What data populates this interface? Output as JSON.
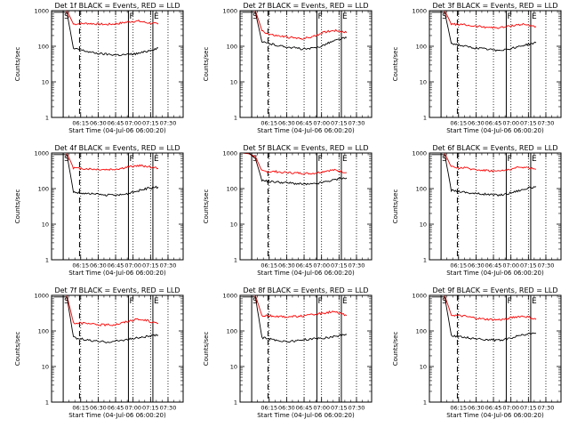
{
  "figure_colors": {
    "events": "#000000",
    "lld": "#ff0000",
    "background": "#ffffff"
  },
  "chart_data": [
    {
      "type": "line",
      "title": "Det 1f BLACK = Events, RED = LLD",
      "xlabel": "Start Time (04-Jul-06 06:00:20)",
      "ylabel": "Counts/sec",
      "y_scale": "log",
      "ylim": [
        1,
        1000
      ],
      "x_tick_labels": [
        "06:15",
        "06:30",
        "06:45",
        "07:00",
        "07:15",
        "07:30"
      ],
      "y_tick_labels": [
        "1",
        "10",
        "100",
        "1000"
      ],
      "markers": [
        {
          "label": "S",
          "x": "06:00"
        },
        {
          "label": "F",
          "x": "06:56"
        },
        {
          "label": "E",
          "x": "07:17"
        }
      ],
      "series": [
        {
          "values": [
            1000,
            1000,
            1000,
            420,
            430,
            440,
            430,
            420,
            410,
            420,
            440,
            470,
            500,
            510,
            470,
            440,
            420
          ]
        },
        {
          "values": [
            900,
            900,
            900,
            85,
            80,
            72,
            66,
            62,
            60,
            58,
            57,
            58,
            60,
            63,
            70,
            80,
            90
          ]
        }
      ]
    },
    {
      "type": "line",
      "title": "Det 2f BLACK = Events, RED = LLD",
      "xlabel": "Start Time (04-Jul-06 06:00:20)",
      "ylabel": "Counts/sec",
      "y_scale": "log",
      "ylim": [
        1,
        1000
      ],
      "x_tick_labels": [
        "06:15",
        "06:30",
        "06:45",
        "07:00",
        "07:15",
        "07:30"
      ],
      "y_tick_labels": [
        "1",
        "10",
        "100",
        "1000"
      ],
      "markers": [
        {
          "label": "S",
          "x": "06:00"
        },
        {
          "label": "F",
          "x": "06:56"
        },
        {
          "label": "E",
          "x": "07:17"
        }
      ],
      "series": [
        {
          "values": [
            1000,
            1000,
            1000,
            280,
            220,
            200,
            190,
            180,
            170,
            165,
            170,
            190,
            230,
            260,
            280,
            270,
            240
          ]
        },
        {
          "values": [
            900,
            900,
            900,
            130,
            120,
            110,
            100,
            95,
            90,
            85,
            83,
            88,
            100,
            120,
            140,
            160,
            175
          ]
        }
      ]
    },
    {
      "type": "line",
      "title": "Det 3f BLACK = Events, RED = LLD",
      "xlabel": "Start Time (04-Jul-06 06:00:20)",
      "ylabel": "Counts/sec",
      "y_scale": "log",
      "ylim": [
        1,
        1000
      ],
      "x_tick_labels": [
        "06:15",
        "06:30",
        "06:45",
        "07:00",
        "07:15",
        "07:30"
      ],
      "y_tick_labels": [
        "1",
        "10",
        "100",
        "1000"
      ],
      "markers": [
        {
          "label": "S",
          "x": "06:00"
        },
        {
          "label": "F",
          "x": "06:56"
        },
        {
          "label": "E",
          "x": "07:17"
        }
      ],
      "series": [
        {
          "values": [
            1000,
            1000,
            1000,
            420,
            410,
            400,
            380,
            360,
            350,
            340,
            330,
            340,
            370,
            400,
            410,
            390,
            360
          ]
        },
        {
          "values": [
            900,
            900,
            900,
            120,
            110,
            100,
            92,
            88,
            84,
            80,
            78,
            80,
            85,
            95,
            105,
            115,
            125
          ]
        }
      ]
    },
    {
      "type": "line",
      "title": "Det 4f BLACK = Events, RED = LLD",
      "xlabel": "Start Time (04-Jul-06 06:00:20)",
      "ylabel": "Counts/sec",
      "y_scale": "log",
      "ylim": [
        1,
        1000
      ],
      "x_tick_labels": [
        "06:15",
        "06:30",
        "06:45",
        "07:00",
        "07:15",
        "07:30"
      ],
      "y_tick_labels": [
        "1",
        "10",
        "100",
        "1000"
      ],
      "markers": [
        {
          "label": "S",
          "x": "06:00"
        },
        {
          "label": "F",
          "x": "06:56"
        },
        {
          "label": "E",
          "x": "07:17"
        }
      ],
      "series": [
        {
          "values": [
            1000,
            1000,
            1000,
            380,
            370,
            360,
            350,
            345,
            340,
            345,
            360,
            390,
            420,
            440,
            430,
            400,
            370
          ]
        },
        {
          "values": [
            900,
            900,
            900,
            80,
            75,
            72,
            70,
            68,
            66,
            65,
            66,
            70,
            78,
            88,
            98,
            105,
            110
          ]
        }
      ]
    },
    {
      "type": "line",
      "title": "Det 5f BLACK = Events, RED = LLD",
      "xlabel": "Start Time (04-Jul-06 06:00:20)",
      "ylabel": "Counts/sec",
      "y_scale": "log",
      "ylim": [
        1,
        1000
      ],
      "x_tick_labels": [
        "06:15",
        "06:30",
        "06:45",
        "07:00",
        "07:15",
        "07:30"
      ],
      "y_tick_labels": [
        "1",
        "10",
        "100",
        "1000"
      ],
      "markers": [
        {
          "label": "S",
          "x": "06:00"
        },
        {
          "label": "F",
          "x": "06:56"
        },
        {
          "label": "E",
          "x": "07:17"
        }
      ],
      "series": [
        {
          "values": [
            1000,
            950,
            800,
            310,
            300,
            300,
            290,
            280,
            275,
            270,
            265,
            270,
            290,
            320,
            330,
            310,
            280
          ]
        },
        {
          "values": [
            1000,
            1000,
            700,
            170,
            160,
            155,
            150,
            145,
            140,
            135,
            132,
            135,
            145,
            160,
            175,
            190,
            200
          ]
        }
      ]
    },
    {
      "type": "line",
      "title": "Det 6f BLACK = Events, RED = LLD",
      "xlabel": "Start Time (04-Jul-06 06:00:20)",
      "ylabel": "Counts/sec",
      "y_scale": "log",
      "ylim": [
        1,
        1000
      ],
      "x_tick_labels": [
        "06:15",
        "06:30",
        "06:45",
        "07:00",
        "07:15",
        "07:30"
      ],
      "y_tick_labels": [
        "1",
        "10",
        "100",
        "1000"
      ],
      "markers": [
        {
          "label": "S",
          "x": "06:00"
        },
        {
          "label": "F",
          "x": "06:56"
        },
        {
          "label": "E",
          "x": "07:17"
        }
      ],
      "series": [
        {
          "values": [
            1000,
            1000,
            1000,
            400,
            390,
            380,
            360,
            340,
            330,
            320,
            310,
            320,
            350,
            380,
            400,
            380,
            350
          ]
        },
        {
          "values": [
            900,
            900,
            900,
            90,
            85,
            80,
            75,
            72,
            70,
            68,
            66,
            68,
            75,
            85,
            95,
            105,
            115
          ]
        }
      ]
    },
    {
      "type": "line",
      "title": "Det 7f BLACK = Events, RED = LLD",
      "xlabel": "Start Time (04-Jul-06 06:00:20)",
      "ylabel": "Counts/sec",
      "y_scale": "log",
      "ylim": [
        1,
        1000
      ],
      "x_tick_labels": [
        "06:15",
        "06:30",
        "06:45",
        "07:00",
        "07:15",
        "07:30"
      ],
      "y_tick_labels": [
        "1",
        "10",
        "100",
        "1000"
      ],
      "markers": [
        {
          "label": "S",
          "x": "06:00"
        },
        {
          "label": "F",
          "x": "06:56"
        },
        {
          "label": "E",
          "x": "07:17"
        }
      ],
      "series": [
        {
          "values": [
            1000,
            1000,
            1000,
            170,
            165,
            160,
            155,
            150,
            148,
            150,
            160,
            180,
            200,
            210,
            200,
            180,
            160
          ]
        },
        {
          "values": [
            900,
            900,
            900,
            65,
            60,
            56,
            52,
            50,
            49,
            50,
            53,
            57,
            60,
            64,
            68,
            72,
            76
          ]
        }
      ]
    },
    {
      "type": "line",
      "title": "Det 8f BLACK = Events, RED = LLD",
      "xlabel": "Start Time (04-Jul-06 06:00:20)",
      "ylabel": "Counts/sec",
      "y_scale": "log",
      "ylim": [
        1,
        1000
      ],
      "x_tick_labels": [
        "06:15",
        "06:30",
        "06:45",
        "07:00",
        "07:15",
        "07:30"
      ],
      "y_tick_labels": [
        "1",
        "10",
        "100",
        "1000"
      ],
      "markers": [
        {
          "label": "S",
          "x": "06:00"
        },
        {
          "label": "F",
          "x": "06:56"
        },
        {
          "label": "E",
          "x": "07:17"
        }
      ],
      "series": [
        {
          "values": [
            1000,
            1000,
            1000,
            270,
            265,
            260,
            255,
            250,
            255,
            260,
            270,
            290,
            310,
            330,
            340,
            310,
            270
          ]
        },
        {
          "values": [
            900,
            900,
            900,
            65,
            60,
            56,
            52,
            50,
            52,
            55,
            58,
            60,
            62,
            65,
            70,
            75,
            80
          ]
        }
      ]
    },
    {
      "type": "line",
      "title": "Det 9f BLACK = Events, RED = LLD",
      "xlabel": "Start Time (04-Jul-06 06:00:20)",
      "ylabel": "Counts/sec",
      "y_scale": "log",
      "ylim": [
        1,
        1000
      ],
      "x_tick_labels": [
        "06:15",
        "06:30",
        "06:45",
        "07:00",
        "07:15",
        "07:30"
      ],
      "y_tick_labels": [
        "1",
        "10",
        "100",
        "1000"
      ],
      "markers": [
        {
          "label": "S",
          "x": "06:00"
        },
        {
          "label": "F",
          "x": "06:56"
        },
        {
          "label": "E",
          "x": "07:17"
        }
      ],
      "series": [
        {
          "values": [
            1000,
            1000,
            1000,
            280,
            270,
            260,
            240,
            225,
            215,
            210,
            205,
            210,
            230,
            250,
            260,
            240,
            210
          ]
        },
        {
          "values": [
            900,
            900,
            900,
            75,
            70,
            66,
            62,
            60,
            58,
            56,
            55,
            57,
            62,
            70,
            78,
            82,
            85
          ]
        }
      ]
    }
  ]
}
